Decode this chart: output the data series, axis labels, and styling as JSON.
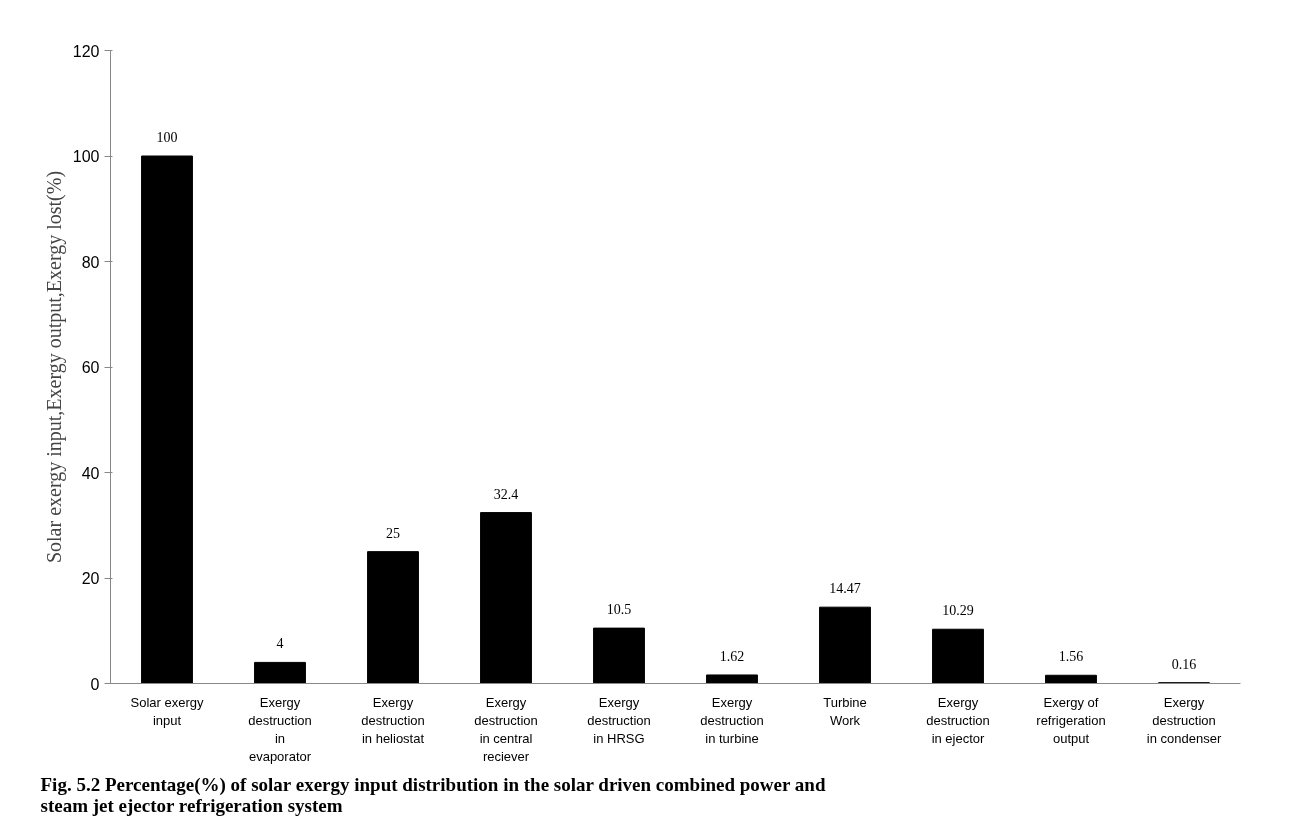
{
  "chart_data": {
    "type": "bar",
    "ylabel": "Solar exergy input,Exergy output,Exergy lost(%)",
    "categories": [
      "Solar exergy\ninput",
      "Exergy\ndestruction\nin\nevaporator",
      "Exergy\ndestruction\nin heliostat",
      "Exergy\ndestruction\nin central\nreciever",
      "Exergy\ndestruction\nin HRSG",
      "Exergy\ndestruction\nin turbine",
      "Turbine\nWork",
      "Exergy\ndestruction\nin ejector",
      "Exergy of\nrefrigeration\noutput",
      "Exergy\ndestruction\nin condenser"
    ],
    "values": [
      100,
      4,
      25,
      32.4,
      10.5,
      1.62,
      14.47,
      10.29,
      1.56,
      0.16
    ],
    "color": "#000000",
    "ylim": [
      0,
      120
    ],
    "yticks": [
      0,
      20,
      40,
      60,
      80,
      100,
      120
    ],
    "grid": false,
    "data_labels": true,
    "annotations": [
      "Fig. 5.2  Percentage(%) of solar exergy input distribution in the solar driven combined power and steam jet ejector refrigeration system"
    ]
  }
}
